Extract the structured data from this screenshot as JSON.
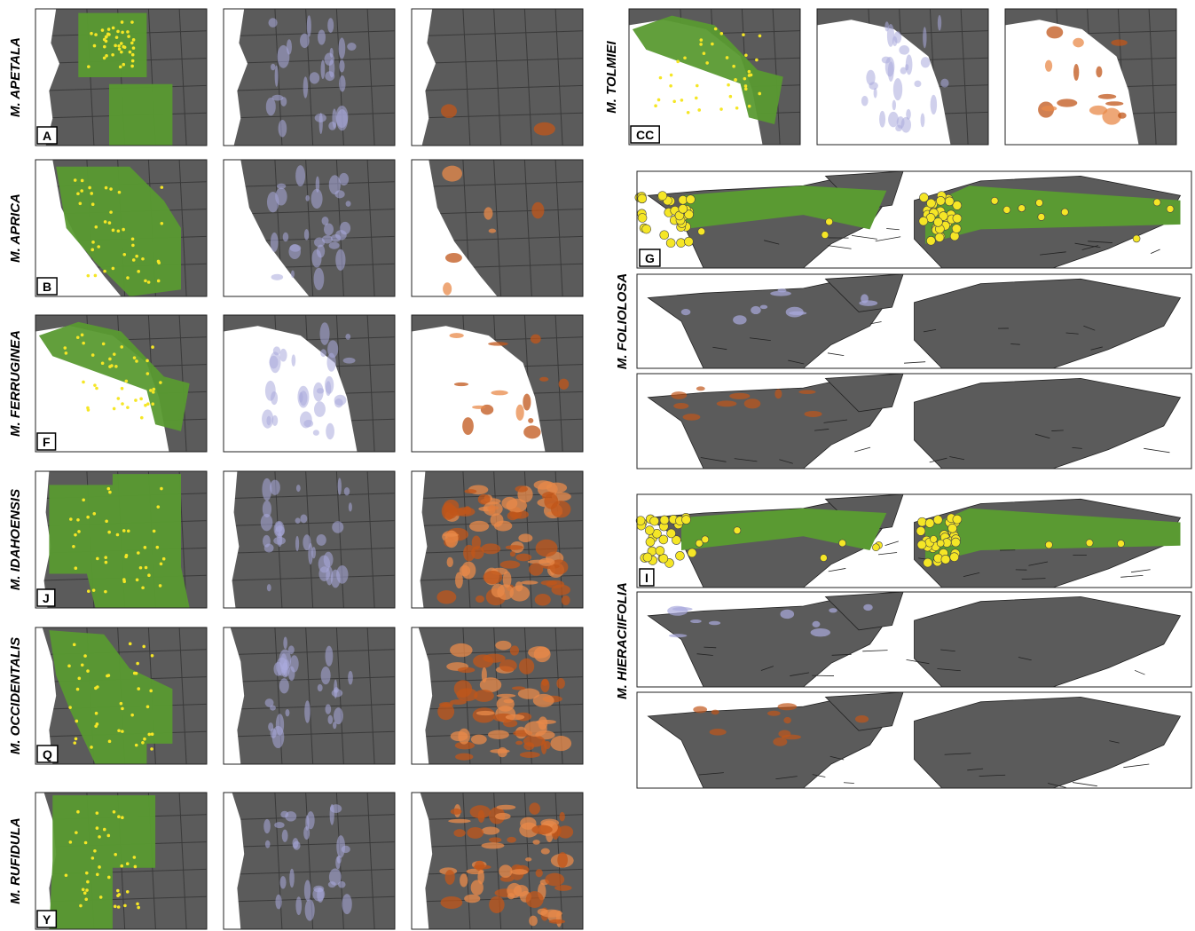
{
  "left_panels": [
    {
      "species": "M. APETALA",
      "letter": "A"
    },
    {
      "species": "M. APRICA",
      "letter": "B"
    },
    {
      "species": "M. FERRUGINEA",
      "letter": "F"
    },
    {
      "species": "M. IDAHOENSIS",
      "letter": "J"
    },
    {
      "species": "M. OCCIDENTALIS",
      "letter": "Q"
    },
    {
      "species": "M. RUFIDULA",
      "letter": "Y"
    }
  ],
  "right_panels": [
    {
      "species": "M. TOLMIEI",
      "letter": "CC"
    },
    {
      "species": "M. FOLIOLOSA",
      "letter": "G"
    },
    {
      "species": "M. HIERACIIFOLIA",
      "letter": "I"
    }
  ]
}
